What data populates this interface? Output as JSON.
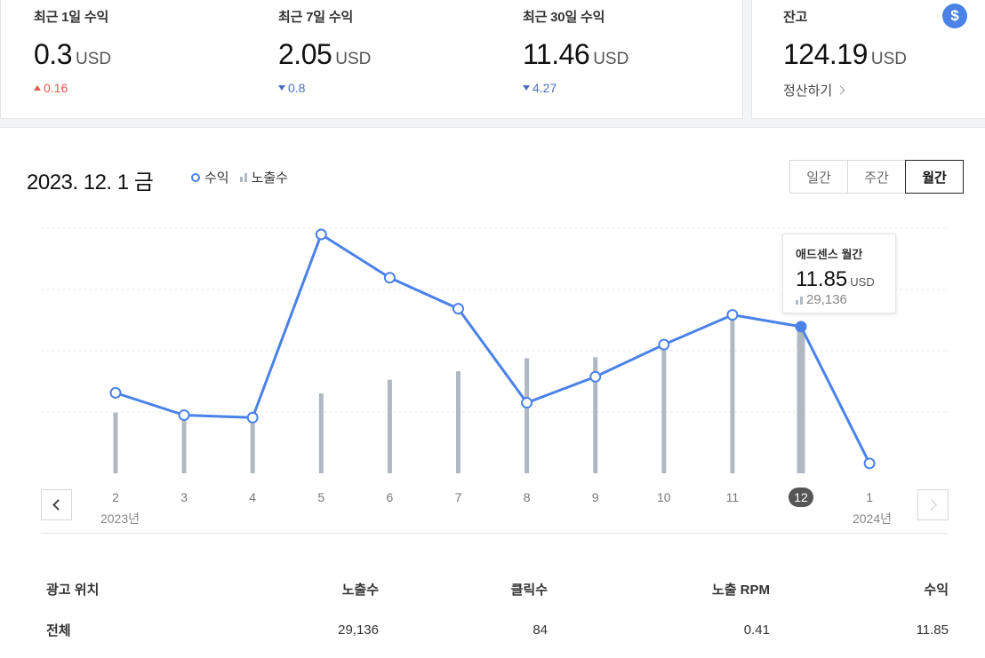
{
  "stats": [
    {
      "label": "최근 1일 수익",
      "value": "0.3",
      "unit": "USD",
      "change": "0.16",
      "direction": "up"
    },
    {
      "label": "최근 7일 수익",
      "value": "2.05",
      "unit": "USD",
      "change": "0.8",
      "direction": "down"
    },
    {
      "label": "최근 30일 수익",
      "value": "11.46",
      "unit": "USD",
      "change": "4.27",
      "direction": "down"
    }
  ],
  "balance": {
    "label": "잔고",
    "value": "124.19",
    "unit": "USD",
    "settle_label": "정산하기",
    "icon": "dollar-icon",
    "icon_glyph": "$"
  },
  "panel": {
    "date_title": "2023. 12. 1 금",
    "legend": {
      "revenue": "수익",
      "impressions": "노출수"
    },
    "period_tabs": [
      {
        "label": "일간",
        "active": false
      },
      {
        "label": "주간",
        "active": false
      },
      {
        "label": "월간",
        "active": true
      }
    ],
    "tooltip": {
      "title": "애드센스 월간",
      "value": "11.85",
      "unit": "USD",
      "impressions": "29,136"
    },
    "years": {
      "start": "2023년",
      "end": "2024년"
    }
  },
  "chart_data": {
    "type": "line",
    "x": [
      "2",
      "3",
      "4",
      "5",
      "6",
      "7",
      "8",
      "9",
      "10",
      "11",
      "12",
      "1"
    ],
    "selected_index": 10,
    "series": [
      {
        "name": "수익",
        "type": "line",
        "color": "#4a82e8",
        "values": [
          6.5,
          4.7,
          4.5,
          19.3,
          15.8,
          13.3,
          5.7,
          7.8,
          10.4,
          12.8,
          11.85,
          0.3
        ]
      },
      {
        "name": "노출수",
        "type": "bar",
        "color": "#b0b8c4",
        "values": [
          12100,
          10800,
          10700,
          15900,
          18600,
          20300,
          22900,
          23100,
          26600,
          31800,
          29136,
          0
        ]
      }
    ],
    "grid": true,
    "colors": {
      "line": "#4a82e8",
      "bar": "#b0b8c4",
      "grid": "#e6e8eb"
    }
  },
  "table": {
    "headers": [
      "광고 위치",
      "노출수",
      "클릭수",
      "노출 RPM",
      "수익"
    ],
    "rows": [
      [
        "전체",
        "29,136",
        "84",
        "0.41",
        "11.85"
      ]
    ]
  }
}
